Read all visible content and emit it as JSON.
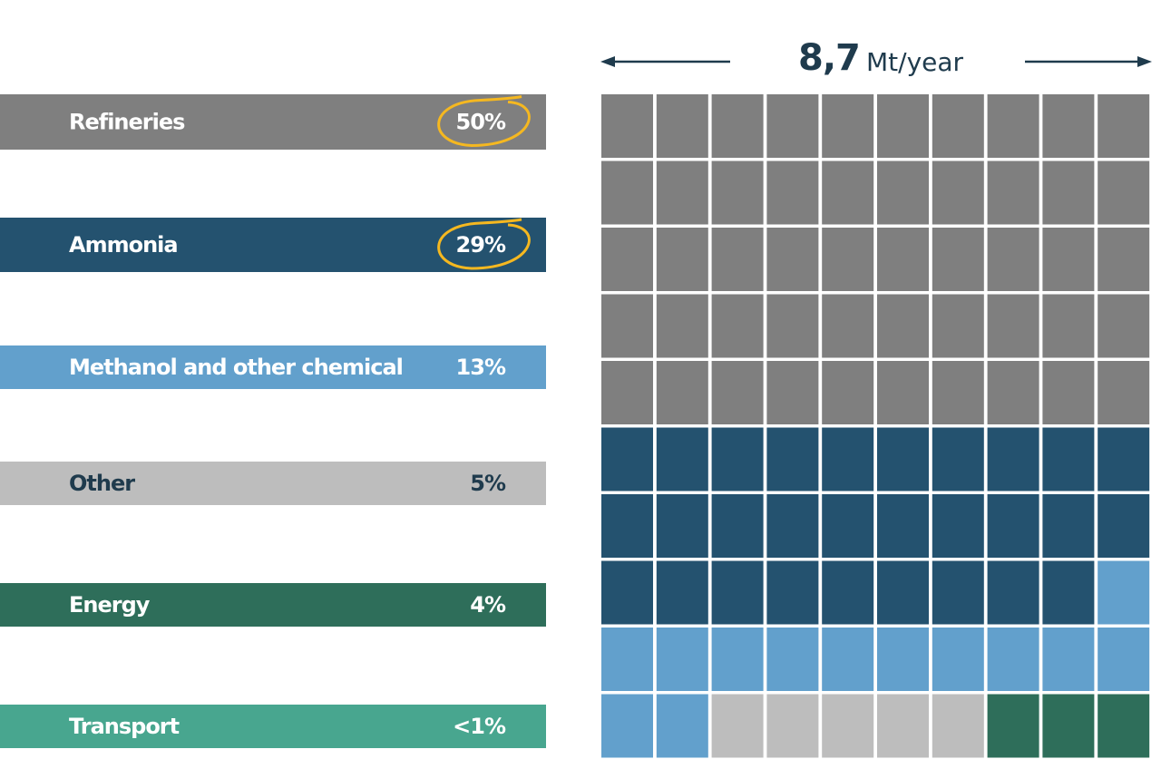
{
  "chart_data": {
    "type": "waffle",
    "total": "8,7",
    "unit": "Mt/year",
    "categories": [
      "Refineries",
      "Ammonia",
      "Methanol and other chemical",
      "Other",
      "Energy",
      "Transport"
    ],
    "values": [
      50,
      29,
      13,
      5,
      4,
      0.5
    ],
    "value_labels": [
      "50%",
      "29%",
      "13%",
      "5%",
      "4%",
      "<1%"
    ],
    "colors": [
      "#7f7f7f",
      "#24526f",
      "#62a0cc",
      "#bdbdbd",
      "#2e6e5a",
      "#48a68f"
    ],
    "label_colors": [
      "#ffffff",
      "#ffffff",
      "#ffffff",
      "#1f3b4d",
      "#ffffff",
      "#ffffff"
    ],
    "highlight": [
      true,
      true,
      false,
      false,
      false,
      false
    ],
    "highlight_color": "#f5b820"
  }
}
